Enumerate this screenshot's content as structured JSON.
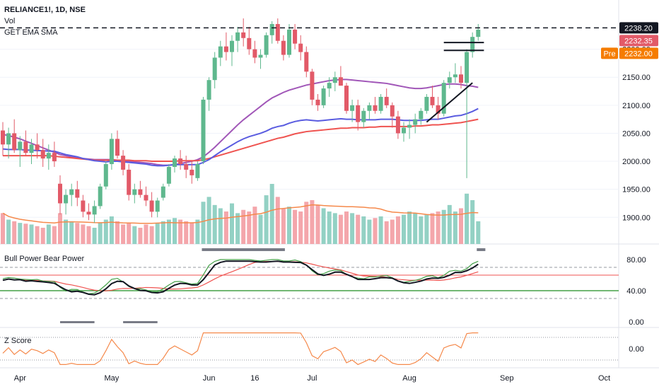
{
  "legend": {
    "symbol": "RELIANCE1!, 1D, NSE",
    "vol": "Vol",
    "ema_sma": "GET EMA SMA"
  },
  "panes": {
    "bull_bear_title": "Bull Power Bear Power",
    "zscore_title": "Z Score"
  },
  "price_tags": {
    "last": "2238.20",
    "current": "2232.35",
    "pre_label": "Pre",
    "pre_value": "2232.00"
  },
  "colors": {
    "up": "#5fb88e",
    "down": "#e25a68",
    "vol_up": "#93d1c4",
    "vol_down": "#f4a6ab",
    "ema_blue": "#5a5ce0",
    "ema_red": "#ef5350",
    "sma_purple": "#a157b8",
    "orange": "#f5894b",
    "pre_orange": "#f57c00",
    "green_line": "#43a047",
    "tag_black": "#131722"
  },
  "chart_data": {
    "type": "candlestick",
    "title": "RELIANCE1!, 1D, NSE",
    "x_ticks": [
      "Apr",
      "May",
      "Jun",
      "16",
      "Jul",
      "Aug",
      "Sep",
      "Oct"
    ],
    "y_ticks": [
      "1900.00",
      "1950.00",
      "2000.00",
      "2050.00",
      "2100.00",
      "2150.00",
      "2200.00"
    ],
    "ylim": [
      1865,
      2250
    ],
    "resistance_level": 2238.2,
    "series": [
      {
        "name": "Vol",
        "type": "volume"
      },
      {
        "name": "GET EMA SMA",
        "type": "moving-averages"
      }
    ],
    "candles": [
      [
        2055,
        2070,
        2010,
        2030
      ],
      [
        2030,
        2060,
        2005,
        2050
      ],
      [
        2050,
        2075,
        2015,
        2020
      ],
      [
        2020,
        2045,
        1990,
        2035
      ],
      [
        2035,
        2055,
        2010,
        2015
      ],
      [
        2015,
        2040,
        1995,
        2030
      ],
      [
        2030,
        2050,
        2005,
        2020
      ],
      [
        2020,
        2040,
        1990,
        2005
      ],
      [
        2005,
        2030,
        1985,
        2015
      ],
      [
        2015,
        2035,
        1990,
        2000
      ],
      [
        1960,
        1975,
        1905,
        1925
      ],
      [
        1925,
        1950,
        1905,
        1940
      ],
      [
        1940,
        1960,
        1920,
        1950
      ],
      [
        1950,
        1965,
        1920,
        1935
      ],
      [
        1930,
        1940,
        1900,
        1910
      ],
      [
        1910,
        1925,
        1895,
        1905
      ],
      [
        1905,
        1930,
        1890,
        1920
      ],
      [
        1920,
        1960,
        1915,
        1955
      ],
      [
        1955,
        2000,
        1950,
        1995
      ],
      [
        1995,
        2050,
        1985,
        2040
      ],
      [
        2040,
        2055,
        2005,
        2010
      ],
      [
        2010,
        2020,
        1975,
        1985
      ],
      [
        1985,
        1995,
        1930,
        1940
      ],
      [
        1940,
        1960,
        1925,
        1950
      ],
      [
        1950,
        1965,
        1935,
        1940
      ],
      [
        1940,
        1955,
        1920,
        1930
      ],
      [
        1930,
        1945,
        1900,
        1910
      ],
      [
        1910,
        1935,
        1900,
        1930
      ],
      [
        1935,
        1960,
        1930,
        1955
      ],
      [
        1960,
        1995,
        1955,
        1990
      ],
      [
        1990,
        2010,
        1980,
        2005
      ],
      [
        2005,
        2020,
        1985,
        1995
      ],
      [
        1995,
        2010,
        1970,
        1985
      ],
      [
        1985,
        2000,
        1960,
        1975
      ],
      [
        1970,
        2000,
        1965,
        1995
      ],
      [
        2000,
        2115,
        1995,
        2110
      ],
      [
        2110,
        2150,
        2090,
        2145
      ],
      [
        2145,
        2195,
        2130,
        2185
      ],
      [
        2185,
        2215,
        2170,
        2205
      ],
      [
        2205,
        2230,
        2180,
        2195
      ],
      [
        2195,
        2225,
        2170,
        2215
      ],
      [
        2215,
        2240,
        2195,
        2230
      ],
      [
        2230,
        2255,
        2205,
        2220
      ],
      [
        2220,
        2240,
        2190,
        2200
      ],
      [
        2200,
        2215,
        2175,
        2185
      ],
      [
        2185,
        2200,
        2165,
        2190
      ],
      [
        2190,
        2230,
        2185,
        2225
      ],
      [
        2225,
        2250,
        2210,
        2245
      ],
      [
        2245,
        2255,
        2210,
        2215
      ],
      [
        2215,
        2225,
        2180,
        2190
      ],
      [
        2190,
        2245,
        2185,
        2235
      ],
      [
        2235,
        2245,
        2200,
        2210
      ],
      [
        2210,
        2225,
        2180,
        2195
      ],
      [
        2195,
        2205,
        2150,
        2160
      ],
      [
        2160,
        2165,
        2100,
        2110
      ],
      [
        2110,
        2120,
        2090,
        2100
      ],
      [
        2100,
        2135,
        2095,
        2130
      ],
      [
        2130,
        2150,
        2115,
        2140
      ],
      [
        2140,
        2160,
        2125,
        2150
      ],
      [
        2150,
        2170,
        2135,
        2135
      ],
      [
        2135,
        2140,
        2085,
        2090
      ],
      [
        2090,
        2110,
        2070,
        2100
      ],
      [
        2100,
        2110,
        2055,
        2070
      ],
      [
        2070,
        2095,
        2060,
        2090
      ],
      [
        2090,
        2105,
        2075,
        2100
      ],
      [
        2100,
        2115,
        2085,
        2090
      ],
      [
        2090,
        2120,
        2085,
        2115
      ],
      [
        2115,
        2130,
        2095,
        2100
      ],
      [
        2100,
        2105,
        2060,
        2080
      ],
      [
        2080,
        2090,
        2040,
        2050
      ],
      [
        2050,
        2070,
        2035,
        2060
      ],
      [
        2060,
        2075,
        2040,
        2065
      ],
      [
        2065,
        2085,
        2050,
        2075
      ],
      [
        2075,
        2095,
        2065,
        2090
      ],
      [
        2090,
        2120,
        2085,
        2115
      ],
      [
        2115,
        2135,
        2095,
        2100
      ],
      [
        2100,
        2115,
        2075,
        2085
      ],
      [
        2085,
        2145,
        2080,
        2140
      ],
      [
        2140,
        2160,
        2130,
        2150
      ],
      [
        2150,
        2175,
        2140,
        2155
      ],
      [
        2155,
        2170,
        2130,
        2140
      ],
      [
        2140,
        2200,
        1970,
        2195
      ],
      [
        2195,
        2230,
        2185,
        2222
      ],
      [
        2222,
        2245,
        2215,
        2235
      ]
    ],
    "volume": [
      38,
      30,
      28,
      26,
      25,
      24,
      22,
      20,
      24,
      22,
      38,
      30,
      28,
      26,
      24,
      22,
      20,
      26,
      30,
      34,
      28,
      24,
      26,
      22,
      20,
      24,
      22,
      26,
      28,
      30,
      32,
      30,
      28,
      26,
      30,
      52,
      58,
      48,
      44,
      40,
      50,
      38,
      42,
      40,
      46,
      36,
      60,
      74,
      58,
      44,
      46,
      42,
      40,
      52,
      54,
      48,
      44,
      40,
      38,
      36,
      40,
      38,
      36,
      34,
      30,
      32,
      34,
      28,
      30,
      34,
      36,
      40,
      38,
      34,
      36,
      38,
      40,
      42,
      48,
      40,
      44,
      62,
      54,
      28
    ],
    "ema_fast": [
      2022,
      2021,
      2021,
      2021,
      2020,
      2020,
      2019,
      2019,
      2018,
      2018,
      2015,
      2012,
      2010,
      2008,
      2005,
      2003,
      2001,
      2000,
      1999,
      2000,
      2000,
      1999,
      1998,
      1997,
      1996,
      1995,
      1993,
      1992,
      1992,
      1993,
      1994,
      1994,
      1994,
      1994,
      1994,
      1998,
      2003,
      2010,
      2017,
      2023,
      2029,
      2035,
      2040,
      2044,
      2047,
      2050,
      2054,
      2059,
      2062,
      2064,
      2068,
      2071,
      2073,
      2074,
      2073,
      2072,
      2073,
      2074,
      2075,
      2076,
      2075,
      2075,
      2074,
      2074,
      2074,
      2074,
      2075,
      2075,
      2075,
      2074,
      2073,
      2073,
      2073,
      2073,
      2074,
      2075,
      2075,
      2077,
      2079,
      2081,
      2082,
      2085,
      2089,
      2094
    ],
    "ema_slow": [
      2010,
      2010,
      2010,
      2010,
      2010,
      2010,
      2010,
      2010,
      2010,
      2009,
      2008,
      2007,
      2006,
      2005,
      2004,
      2003,
      2002,
      2002,
      2002,
      2002,
      2002,
      2002,
      2002,
      2001,
      2001,
      2001,
      2000,
      2000,
      2000,
      2000,
      2000,
      2001,
      2001,
      2001,
      2001,
      2003,
      2005,
      2008,
      2011,
      2014,
      2017,
      2020,
      2023,
      2026,
      2029,
      2032,
      2035,
      2038,
      2041,
      2043,
      2046,
      2049,
      2051,
      2053,
      2054,
      2055,
      2056,
      2057,
      2058,
      2059,
      2059,
      2060,
      2060,
      2060,
      2061,
      2061,
      2062,
      2062,
      2062,
      2062,
      2062,
      2062,
      2063,
      2063,
      2064,
      2065,
      2065,
      2066,
      2067,
      2068,
      2069,
      2071,
      2073,
      2075
    ],
    "sma": [
      2048,
      2046,
      2043,
      2040,
      2036,
      2032,
      2028,
      2024,
      2020,
      2016,
      2012,
      2010,
      2008,
      2006,
      2005,
      2004,
      2003,
      2003,
      2003,
      2003,
      2002,
      2001,
      2000,
      1999,
      1998,
      1997,
      1996,
      1994,
      1993,
      1993,
      1994,
      1996,
      1998,
      2000,
      2003,
      2008,
      2016,
      2025,
      2035,
      2045,
      2055,
      2065,
      2074,
      2082,
      2090,
      2098,
      2106,
      2113,
      2118,
      2123,
      2127,
      2130,
      2133,
      2136,
      2138,
      2140,
      2142,
      2144,
      2145,
      2146,
      2146,
      2145,
      2144,
      2143,
      2142,
      2141,
      2140,
      2139,
      2137,
      2135,
      2133,
      2131,
      2130,
      2130,
      2131,
      2133,
      2135,
      2137,
      2138,
      2138,
      2137,
      2135,
      2134,
      2132
    ]
  },
  "bull_bear": {
    "y_ticks": [
      "80.00",
      "40.00",
      "0.00"
    ],
    "levels": {
      "upper": 70,
      "middle": 60,
      "lower": 40,
      "bottom": 30
    }
  },
  "zscore": {
    "y_ticks": [
      "0.00"
    ]
  }
}
